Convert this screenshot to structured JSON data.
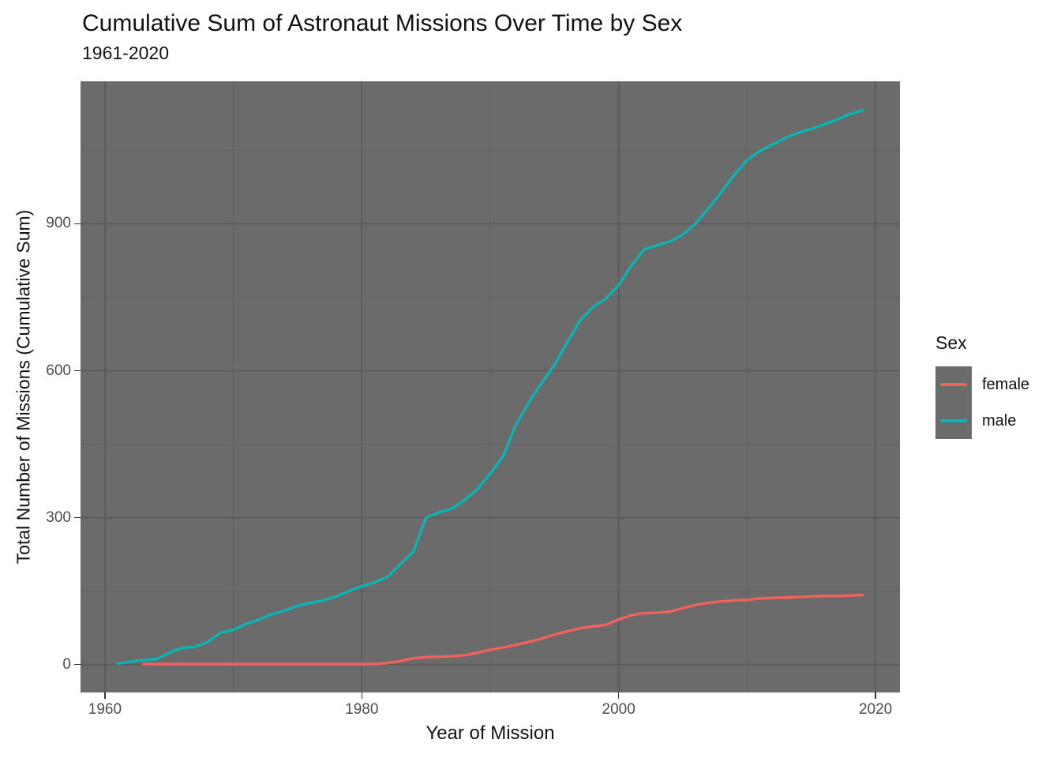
{
  "header": {
    "title": "Cumulative Sum of Astronaut Missions Over Time by Sex",
    "subtitle": "1961-2020"
  },
  "axes": {
    "x_label": "Year of Mission",
    "y_label": "Total Number of Missions (Cumulative Sum)"
  },
  "legend": {
    "title": "Sex",
    "entries": [
      {
        "label": "female",
        "color": "#F4625D"
      },
      {
        "label": "male",
        "color": "#06B7B6"
      }
    ]
  },
  "colors": {
    "panel_background": "#6B6B6B",
    "grid_major": "#5A5A5A",
    "grid_minor": "#626262",
    "tick_mark": "#333333",
    "tick_text": "#4D4D4D",
    "female": "#F4625D",
    "male": "#06B7B6"
  },
  "chart_data": {
    "type": "line",
    "title": "Cumulative Sum of Astronaut Missions Over Time by Sex",
    "subtitle": "1961-2020",
    "xlabel": "Year of Mission",
    "ylabel": "Total Number of Missions (Cumulative Sum)",
    "legend_title": "Sex",
    "legend_position": "right",
    "grid": true,
    "x_range": [
      1958.1,
      2021.9
    ],
    "y_range": [
      -57,
      1191
    ],
    "x_ticks": [
      1960,
      1980,
      2000,
      2020
    ],
    "y_ticks": [
      0,
      300,
      600,
      900
    ],
    "x_minor_ticks": [
      1970,
      1990,
      2010
    ],
    "y_minor_ticks": [
      150,
      450,
      750,
      1050
    ],
    "series": [
      {
        "name": "female",
        "color": "#F4625D",
        "points": [
          [
            1963,
            1
          ],
          [
            1970,
            1
          ],
          [
            1975,
            1
          ],
          [
            1981,
            1
          ],
          [
            1982,
            3
          ],
          [
            1983,
            7
          ],
          [
            1984,
            13
          ],
          [
            1985,
            15
          ],
          [
            1986,
            16
          ],
          [
            1987,
            17
          ],
          [
            1988,
            19
          ],
          [
            1989,
            24
          ],
          [
            1990,
            30
          ],
          [
            1991,
            35
          ],
          [
            1992,
            40
          ],
          [
            1993,
            46
          ],
          [
            1994,
            53
          ],
          [
            1995,
            61
          ],
          [
            1996,
            68
          ],
          [
            1997,
            74
          ],
          [
            1998,
            78
          ],
          [
            1999,
            81
          ],
          [
            2000,
            92
          ],
          [
            2001,
            101
          ],
          [
            2002,
            105
          ],
          [
            2003,
            106
          ],
          [
            2004,
            108
          ],
          [
            2005,
            115
          ],
          [
            2006,
            122
          ],
          [
            2007,
            126
          ],
          [
            2008,
            129
          ],
          [
            2009,
            131
          ],
          [
            2010,
            132
          ],
          [
            2011,
            135
          ],
          [
            2012,
            136
          ],
          [
            2013,
            137
          ],
          [
            2014,
            138
          ],
          [
            2015,
            139
          ],
          [
            2016,
            140
          ],
          [
            2017,
            140
          ],
          [
            2018,
            141
          ],
          [
            2019,
            142
          ]
        ]
      },
      {
        "name": "male",
        "color": "#06B7B6",
        "points": [
          [
            1961,
            2
          ],
          [
            1962,
            6
          ],
          [
            1963,
            9
          ],
          [
            1964,
            11
          ],
          [
            1965,
            24
          ],
          [
            1966,
            34
          ],
          [
            1967,
            36
          ],
          [
            1968,
            46
          ],
          [
            1969,
            65
          ],
          [
            1970,
            71
          ],
          [
            1971,
            83
          ],
          [
            1972,
            92
          ],
          [
            1973,
            103
          ],
          [
            1974,
            110
          ],
          [
            1975,
            120
          ],
          [
            1976,
            126
          ],
          [
            1977,
            131
          ],
          [
            1978,
            139
          ],
          [
            1979,
            150
          ],
          [
            1980,
            160
          ],
          [
            1981,
            168
          ],
          [
            1982,
            179
          ],
          [
            1983,
            205
          ],
          [
            1984,
            230
          ],
          [
            1985,
            300
          ],
          [
            1986,
            311
          ],
          [
            1987,
            318
          ],
          [
            1988,
            336
          ],
          [
            1989,
            358
          ],
          [
            1990,
            390
          ],
          [
            1991,
            425
          ],
          [
            1992,
            490
          ],
          [
            1993,
            535
          ],
          [
            1994,
            575
          ],
          [
            1995,
            612
          ],
          [
            1996,
            658
          ],
          [
            1997,
            703
          ],
          [
            1998,
            730
          ],
          [
            1999,
            747
          ],
          [
            2000,
            775
          ],
          [
            2001,
            815
          ],
          [
            2002,
            848
          ],
          [
            2003,
            856
          ],
          [
            2004,
            864
          ],
          [
            2005,
            878
          ],
          [
            2006,
            901
          ],
          [
            2007,
            932
          ],
          [
            2008,
            965
          ],
          [
            2009,
            1000
          ],
          [
            2010,
            1030
          ],
          [
            2011,
            1049
          ],
          [
            2012,
            1062
          ],
          [
            2013,
            1076
          ],
          [
            2014,
            1086
          ],
          [
            2015,
            1094
          ],
          [
            2016,
            1103
          ],
          [
            2017,
            1113
          ],
          [
            2018,
            1124
          ],
          [
            2019,
            1132
          ]
        ]
      }
    ]
  }
}
